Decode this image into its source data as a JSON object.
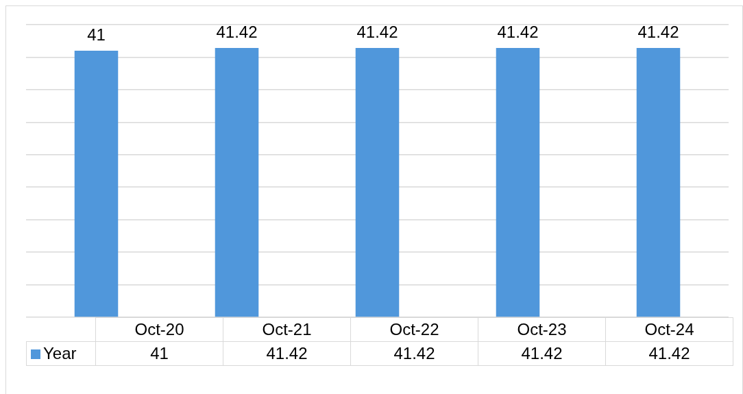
{
  "chart_data": {
    "type": "bar",
    "categories": [
      "Oct-20",
      "Oct-21",
      "Oct-22",
      "Oct-23",
      "Oct-24"
    ],
    "series": [
      {
        "name": "Year",
        "color": "#5097db",
        "values": [
          41,
          41.42,
          41.42,
          41.42,
          41.42
        ],
        "value_labels": [
          "41",
          "41.42",
          "41.42",
          "41.42",
          "41.42"
        ]
      }
    ],
    "annotations": [
      "41",
      "41.42",
      "41.42",
      "41.42",
      "41.42"
    ],
    "grid": "y",
    "legend": "bottom left",
    "tick_labels": "x"
  }
}
